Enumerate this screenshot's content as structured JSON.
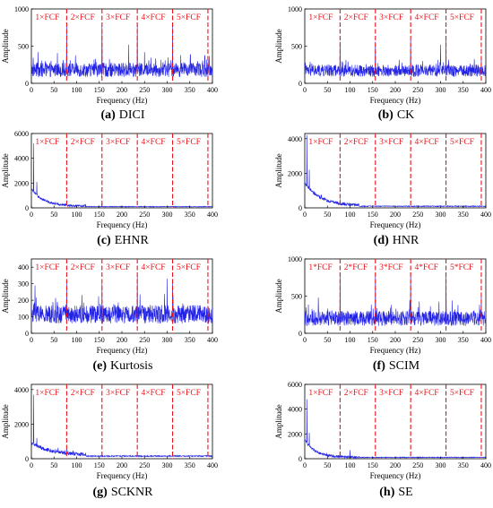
{
  "figure": {
    "colors": {
      "signal": "#2323e6",
      "marker": "#e8141b",
      "axis": "#000000",
      "text": "#000000"
    },
    "harmonic_style": "dashed-vertical-lines"
  },
  "chart_data": [
    {
      "id": "a",
      "type": "line",
      "caption_letter": "(a)",
      "caption_name": "DICI",
      "xlabel": "Frequency (Hz)",
      "ylabel": "Amplitude",
      "xlim": [
        0,
        400
      ],
      "ylim": [
        0,
        1000
      ],
      "xticks": [
        0,
        50,
        100,
        150,
        200,
        250,
        300,
        350,
        400
      ],
      "yticks": [
        0,
        500,
        1000
      ],
      "harmonics": [
        {
          "label": "1×FCF",
          "x": 78
        },
        {
          "label": "2×FCF",
          "x": 156
        },
        {
          "label": "3×FCF",
          "x": 234
        },
        {
          "label": "4×FCF",
          "x": 312
        },
        {
          "label": "5×FCF",
          "x": 390
        }
      ],
      "series": [
        {
          "kind": "noisy-spectrum",
          "baseline": 180,
          "noise": 95,
          "peaks": [
            {
              "x": 78,
              "y": 780
            },
            {
              "x": 156,
              "y": 790
            },
            {
              "x": 234,
              "y": 810
            },
            {
              "x": 312,
              "y": 790
            },
            {
              "x": 15,
              "y": 420
            },
            {
              "x": 215,
              "y": 520
            },
            {
              "x": 250,
              "y": 420
            },
            {
              "x": 330,
              "y": 380
            }
          ]
        }
      ]
    },
    {
      "id": "b",
      "type": "line",
      "caption_letter": "(b)",
      "caption_name": "CK",
      "xlabel": "Frequency (Hz)",
      "ylabel": "Amplitude",
      "xlim": [
        0,
        400
      ],
      "ylim": [
        0,
        1000
      ],
      "xticks": [
        0,
        50,
        100,
        150,
        200,
        250,
        300,
        350,
        400
      ],
      "yticks": [
        0,
        500,
        1000
      ],
      "harmonics": [
        {
          "label": "1×FCF",
          "x": 78
        },
        {
          "label": "2×FCF",
          "x": 156
        },
        {
          "label": "3×FCF",
          "x": 234
        },
        {
          "label": "4×FCF",
          "x": 312
        },
        {
          "label": "5×FCF",
          "x": 390
        }
      ],
      "series": [
        {
          "kind": "noisy-spectrum",
          "baseline": 170,
          "noise": 80,
          "peaks": [
            {
              "x": 78,
              "y": 560
            },
            {
              "x": 156,
              "y": 560
            },
            {
              "x": 234,
              "y": 590
            },
            {
              "x": 312,
              "y": 620
            },
            {
              "x": 300,
              "y": 520
            },
            {
              "x": 390,
              "y": 320
            }
          ]
        }
      ]
    },
    {
      "id": "c",
      "type": "line",
      "caption_letter": "(c)",
      "caption_name": "EHNR",
      "xlabel": "Frequency (Hz)",
      "ylabel": "Amplitude",
      "xlim": [
        0,
        400
      ],
      "ylim": [
        0,
        6000
      ],
      "xticks": [
        0,
        50,
        100,
        150,
        200,
        250,
        300,
        350,
        400
      ],
      "yticks": [
        0,
        2000,
        4000,
        6000
      ],
      "harmonics": [
        {
          "label": "1×FCF",
          "x": 78
        },
        {
          "label": "2×FCF",
          "x": 156
        },
        {
          "label": "3×FCF",
          "x": 234
        },
        {
          "label": "4×FCF",
          "x": 312
        },
        {
          "label": "5×FCF",
          "x": 390
        }
      ],
      "series": [
        {
          "kind": "lowfreq-decay",
          "baseline": 120,
          "noise": 90,
          "low_amp": 1400,
          "decay": 28,
          "peaks": [
            {
              "x": 5,
              "y": 5200
            },
            {
              "x": 12,
              "y": 2100
            },
            {
              "x": 78,
              "y": 600
            },
            {
              "x": 156,
              "y": 420
            }
          ]
        }
      ]
    },
    {
      "id": "d",
      "type": "line",
      "caption_letter": "(d)",
      "caption_name": "HNR",
      "xlabel": "Frequency (Hz)",
      "ylabel": "Amplitude",
      "xlim": [
        0,
        400
      ],
      "ylim": [
        0,
        4300
      ],
      "xticks": [
        0,
        50,
        100,
        150,
        200,
        250,
        300,
        350,
        400
      ],
      "yticks": [
        0,
        2000,
        4000
      ],
      "harmonics": [
        {
          "label": "1×FCF",
          "x": 78
        },
        {
          "label": "2×FCF",
          "x": 156
        },
        {
          "label": "3×FCF",
          "x": 234
        },
        {
          "label": "4×FCF",
          "x": 312
        },
        {
          "label": "5×FCF",
          "x": 390
        }
      ],
      "series": [
        {
          "kind": "lowfreq-decay",
          "baseline": 110,
          "noise": 90,
          "low_amp": 1300,
          "decay": 35,
          "peaks": [
            {
              "x": 5,
              "y": 4200
            },
            {
              "x": 10,
              "y": 2200
            },
            {
              "x": 78,
              "y": 500
            }
          ]
        }
      ]
    },
    {
      "id": "e",
      "type": "line",
      "caption_letter": "(e)",
      "caption_name": "Kurtosis",
      "xlabel": "Frequency (Hz)",
      "ylabel": "Amplitude",
      "xlim": [
        0,
        400
      ],
      "ylim": [
        0,
        450
      ],
      "xticks": [
        0,
        50,
        100,
        150,
        200,
        250,
        300,
        350,
        400
      ],
      "yticks": [
        0,
        100,
        200,
        300,
        400
      ],
      "harmonics": [
        {
          "label": "1×FCF",
          "x": 78
        },
        {
          "label": "2×FCF",
          "x": 156
        },
        {
          "label": "3×FCF",
          "x": 234
        },
        {
          "label": "4×FCF",
          "x": 312
        },
        {
          "label": "5×FCF",
          "x": 390
        }
      ],
      "series": [
        {
          "kind": "noisy-spectrum",
          "baseline": 115,
          "noise": 55,
          "peaks": [
            {
              "x": 8,
              "y": 290
            },
            {
              "x": 78,
              "y": 310
            },
            {
              "x": 156,
              "y": 300
            },
            {
              "x": 234,
              "y": 350
            },
            {
              "x": 312,
              "y": 320
            },
            {
              "x": 300,
              "y": 330
            }
          ]
        }
      ]
    },
    {
      "id": "f",
      "type": "line",
      "caption_letter": "(f)",
      "caption_name": "SCIM",
      "xlabel": "Frequency (Hz)",
      "ylabel": "Amplitude",
      "xlim": [
        0,
        400
      ],
      "ylim": [
        0,
        1000
      ],
      "xticks": [
        0,
        50,
        100,
        150,
        200,
        250,
        300,
        350,
        400
      ],
      "yticks": [
        0,
        500,
        1000
      ],
      "harmonics": [
        {
          "label": "1*FCF",
          "x": 78
        },
        {
          "label": "2*FCF",
          "x": 156
        },
        {
          "label": "3*FCF",
          "x": 234
        },
        {
          "label": "4*FCF",
          "x": 312
        },
        {
          "label": "5*FCF",
          "x": 390
        }
      ],
      "series": [
        {
          "kind": "noisy-spectrum",
          "baseline": 200,
          "noise": 100,
          "peaks": [
            {
              "x": 78,
              "y": 800
            },
            {
              "x": 156,
              "y": 800
            },
            {
              "x": 234,
              "y": 820
            },
            {
              "x": 312,
              "y": 790
            },
            {
              "x": 390,
              "y": 520
            },
            {
              "x": 30,
              "y": 480
            }
          ]
        }
      ]
    },
    {
      "id": "g",
      "type": "line",
      "caption_letter": "(g)",
      "caption_name": "SCKNR",
      "xlabel": "Frequency (Hz)",
      "ylabel": "Amplitude",
      "xlim": [
        0,
        400
      ],
      "ylim": [
        0,
        4300
      ],
      "xticks": [
        0,
        50,
        100,
        150,
        200,
        250,
        300,
        350,
        400
      ],
      "yticks": [
        0,
        2000,
        4000
      ],
      "harmonics": [
        {
          "label": "1×FCF",
          "x": 78
        },
        {
          "label": "2×FCF",
          "x": 156
        },
        {
          "label": "3×FCF",
          "x": 234
        },
        {
          "label": "4×FCF",
          "x": 312
        },
        {
          "label": "5×FCF",
          "x": 390
        }
      ],
      "series": [
        {
          "kind": "lowfreq-decay",
          "baseline": 200,
          "noise": 110,
          "low_amp": 700,
          "decay": 45,
          "peaks": [
            {
              "x": 5,
              "y": 3700
            },
            {
              "x": 12,
              "y": 1200
            },
            {
              "x": 78,
              "y": 650
            }
          ]
        }
      ]
    },
    {
      "id": "h",
      "type": "line",
      "caption_letter": "(h)",
      "caption_name": "SE",
      "xlabel": "Frequency (Hz)",
      "ylabel": "Amplitude",
      "xlim": [
        0,
        400
      ],
      "ylim": [
        0,
        6000
      ],
      "xticks": [
        0,
        50,
        100,
        150,
        200,
        250,
        300,
        350,
        400
      ],
      "yticks": [
        0,
        2000,
        4000,
        6000
      ],
      "harmonics": [
        {
          "label": "1×FCF",
          "x": 78
        },
        {
          "label": "2×FCF",
          "x": 156
        },
        {
          "label": "3×FCF",
          "x": 234
        },
        {
          "label": "4×FCF",
          "x": 312
        },
        {
          "label": "5×FCF",
          "x": 390
        }
      ],
      "series": [
        {
          "kind": "lowfreq-decay",
          "baseline": 130,
          "noise": 100,
          "low_amp": 1400,
          "decay": 22,
          "peaks": [
            {
              "x": 5,
              "y": 4800
            },
            {
              "x": 10,
              "y": 2100
            },
            {
              "x": 78,
              "y": 600
            },
            {
              "x": 100,
              "y": 700
            }
          ]
        }
      ]
    }
  ]
}
